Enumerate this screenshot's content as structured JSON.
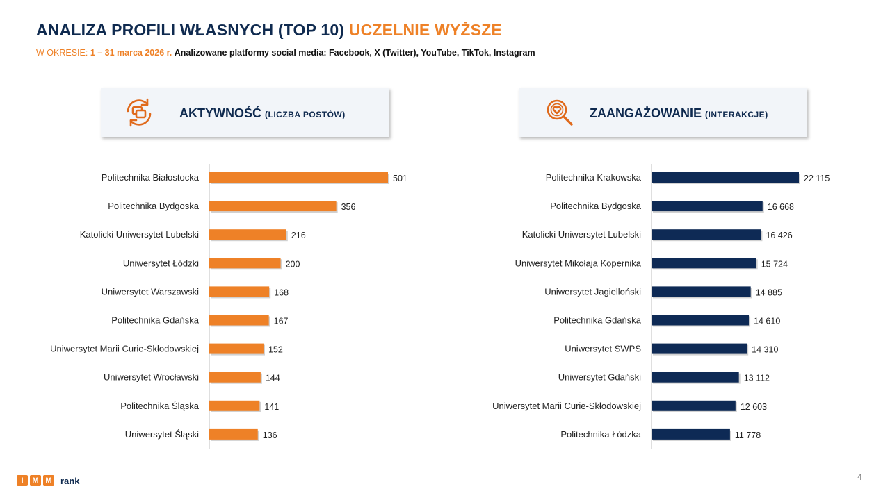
{
  "header": {
    "title_main": "ANALIZA PROFILI WŁASNYCH (TOP 10)",
    "title_accent": "UCZELNIE WYŻSZE",
    "period_label": "W OKRESIE:",
    "period": "1 – 31 marca 2026 r.",
    "platforms": "Analizowane platformy social media: Facebook, X (Twitter), YouTube, TikTok, Instagram"
  },
  "cards": {
    "activity": {
      "title": "AKTYWNOŚĆ",
      "subtitle": "(LICZBA POSTÓW)",
      "icon": "refresh-chat-icon"
    },
    "engagement": {
      "title": "ZAANGAŻOWANIE",
      "subtitle": "(INTERAKCJE)",
      "icon": "search-heart-icon"
    }
  },
  "colors": {
    "navy": "#0f2a4f",
    "orange": "#ee8127",
    "bar_navy": "#0e2a55"
  },
  "chart_data": [
    {
      "type": "bar",
      "orientation": "horizontal",
      "title": "AKTYWNOŚĆ (LICZBA POSTÓW)",
      "color": "#ee8127",
      "xlim": [
        0,
        501
      ],
      "categories": [
        "Politechnika Białostocka",
        "Politechnika Bydgoska",
        "Katolicki Uniwersytet Lubelski",
        "Uniwersytet Łódzki",
        "Uniwersytet Warszawski",
        "Politechnika Gdańska",
        "Uniwersytet Marii Curie-Skłodowskiej",
        "Uniwersytet Wrocławski",
        "Politechnika Śląska",
        "Uniwersytet Śląski"
      ],
      "values": [
        501,
        356,
        216,
        200,
        168,
        167,
        152,
        144,
        141,
        136
      ],
      "value_labels": [
        "501",
        "356",
        "216",
        "200",
        "168",
        "167",
        "152",
        "144",
        "141",
        "136"
      ]
    },
    {
      "type": "bar",
      "orientation": "horizontal",
      "title": "ZAANGAŻOWANIE (INTERAKCJE)",
      "color": "#0e2a55",
      "xlim": [
        0,
        22115
      ],
      "categories": [
        "Politechnika Krakowska",
        "Politechnika Bydgoska",
        "Katolicki Uniwersytet Lubelski",
        "Uniwersytet Mikołaja Kopernika",
        "Uniwersytet Jagielloński",
        "Politechnika Gdańska",
        "Uniwersytet SWPS",
        "Uniwersytet Gdański",
        "Uniwersytet Marii Curie-Skłodowskiej",
        "Politechnika Łódzka"
      ],
      "values": [
        22115,
        16668,
        16426,
        15724,
        14885,
        14610,
        14310,
        13112,
        12603,
        11778
      ],
      "value_labels": [
        "22 115",
        "16 668",
        "16 426",
        "15 724",
        "14 885",
        "14 610",
        "14 310",
        "13 112",
        "12 603",
        "11 778"
      ]
    }
  ],
  "footer": {
    "logo_letters": [
      "I",
      "M",
      "M"
    ],
    "logo_text": "rank",
    "page_number": "4"
  }
}
